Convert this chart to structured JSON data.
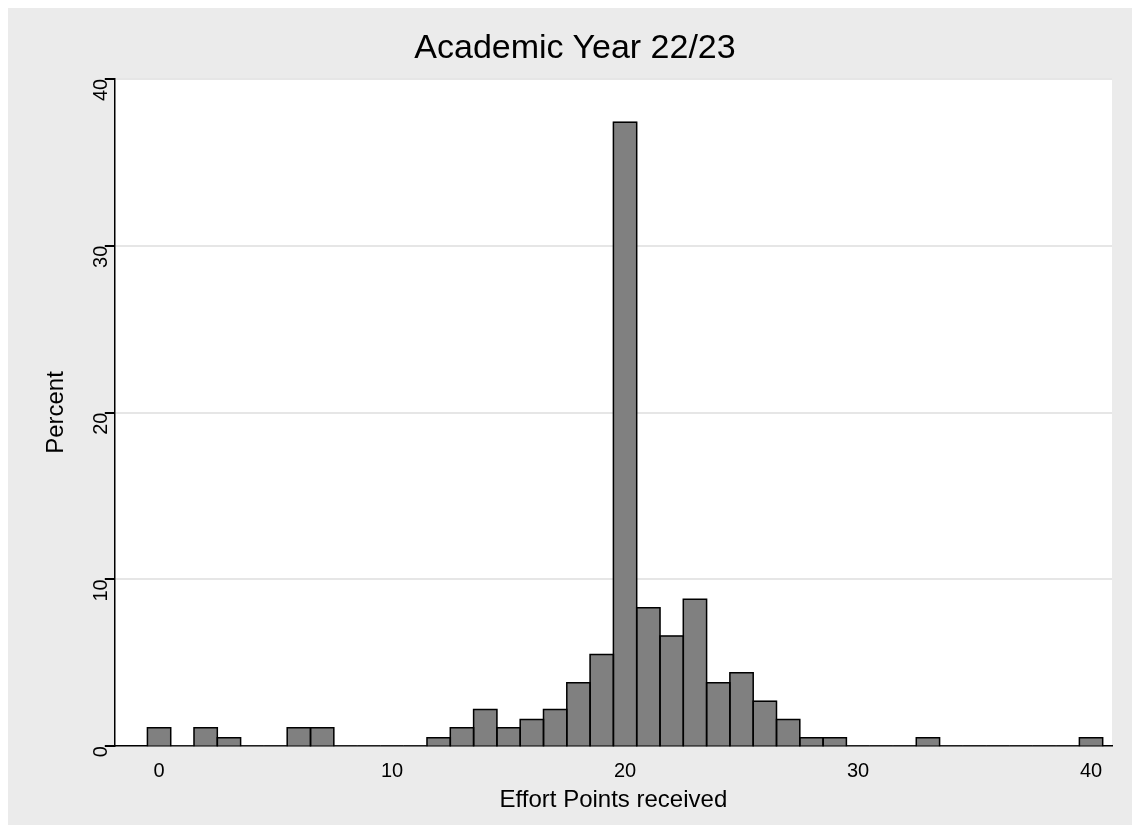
{
  "chart_data": {
    "type": "histogram",
    "title": "Academic Year 22/23",
    "xlabel": "Effort Points received",
    "ylabel": "Percent",
    "bins": [
      -0.5,
      0.5,
      1.5,
      2.5,
      3.5,
      4.5,
      5.5,
      6.5,
      7.5,
      8.5,
      9.5,
      10.5,
      11.5,
      12.5,
      13.5,
      14.5,
      15.5,
      16.5,
      17.5,
      18.5,
      19.5,
      20.5,
      21.5,
      22.5,
      23.5,
      24.5,
      25.5,
      26.5,
      27.5,
      28.5,
      29.5,
      30.5,
      31.5,
      32.5,
      33.5,
      34.5,
      35.5,
      36.5,
      37.5,
      38.5,
      39.5,
      40.5
    ],
    "values": [
      1.1,
      0,
      1.1,
      0.5,
      0,
      0,
      1.1,
      1.1,
      0,
      0,
      0,
      0,
      0.5,
      1.1,
      2.2,
      1.1,
      1.6,
      2.2,
      3.8,
      5.5,
      37.4,
      8.3,
      6.6,
      8.8,
      3.8,
      4.4,
      2.7,
      1.6,
      0.5,
      0.5,
      0,
      0,
      0,
      0.5,
      0,
      0,
      0,
      0,
      0,
      0,
      0.5
    ],
    "color": "#808080",
    "xlim": [
      -1.9,
      40.9
    ],
    "ylim": [
      0,
      40
    ],
    "xticks": [
      0,
      10,
      20,
      30,
      40
    ],
    "yticks": [
      0,
      10,
      20,
      30,
      40
    ],
    "grid": "y",
    "legend": false
  }
}
